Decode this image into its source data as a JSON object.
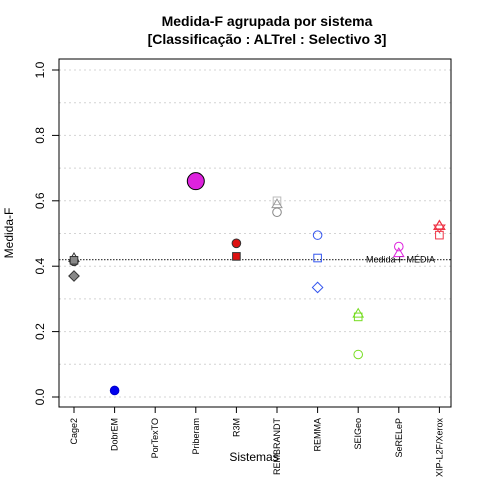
{
  "chart_data": {
    "type": "scatter",
    "title": "Medida-F agrupada por sistema",
    "subtitle": "[Classificação : ALTrel : Selectivo 3]",
    "xlabel": "Sistemas",
    "ylabel": "Medida-F",
    "ylim": [
      0,
      1
    ],
    "yticks": [
      "0.0",
      "0.2",
      "0.4",
      "0.6",
      "0.8",
      "1.0"
    ],
    "grid": true,
    "categories": [
      "Cage2",
      "DobrEM",
      "PorTexTO",
      "Priberam",
      "R3M",
      "REMBRANDT",
      "REMMA",
      "SEIGeo",
      "SeRELeP",
      "XIP-L2F/Xerox"
    ],
    "reference_line": {
      "label": "Medida-F MÉDIA",
      "value": 0.42
    },
    "points": [
      {
        "category": "Cage2",
        "value": 0.425,
        "shape": "triangle",
        "color": "#333333",
        "fill": "none"
      },
      {
        "category": "Cage2",
        "value": 0.415,
        "shape": "circle",
        "color": "#333333",
        "fill": "#888888"
      },
      {
        "category": "Cage2",
        "value": 0.418,
        "shape": "square",
        "color": "#333333",
        "fill": "#888888"
      },
      {
        "category": "Cage2",
        "value": 0.37,
        "shape": "diamond",
        "color": "#333333",
        "fill": "#888888"
      },
      {
        "category": "DobrEM",
        "value": 0.02,
        "shape": "circle",
        "color": "#0000cc",
        "fill": "#0000ee"
      },
      {
        "category": "Priberam",
        "value": 0.66,
        "shape": "circle-large",
        "color": "#000000",
        "fill": "#dd22dd"
      },
      {
        "category": "R3M",
        "value": 0.47,
        "shape": "circle",
        "color": "#333333",
        "fill": "#dd1111"
      },
      {
        "category": "R3M",
        "value": 0.43,
        "shape": "square",
        "color": "#333333",
        "fill": "#dd1111"
      },
      {
        "category": "REMBRANDT",
        "value": 0.6,
        "shape": "square",
        "color": "#bbbbbb",
        "fill": "none"
      },
      {
        "category": "REMBRANDT",
        "value": 0.59,
        "shape": "triangle",
        "color": "#999999",
        "fill": "none"
      },
      {
        "category": "REMBRANDT",
        "value": 0.565,
        "shape": "circle",
        "color": "#888888",
        "fill": "none"
      },
      {
        "category": "REMMA",
        "value": 0.495,
        "shape": "circle",
        "color": "#3355ee",
        "fill": "none"
      },
      {
        "category": "REMMA",
        "value": 0.425,
        "shape": "square",
        "color": "#3355ee",
        "fill": "none"
      },
      {
        "category": "REMMA",
        "value": 0.335,
        "shape": "diamond",
        "color": "#3355ee",
        "fill": "none"
      },
      {
        "category": "SEIGeo",
        "value": 0.255,
        "shape": "triangle",
        "color": "#77dd22",
        "fill": "none"
      },
      {
        "category": "SEIGeo",
        "value": 0.245,
        "shape": "square",
        "color": "#77dd22",
        "fill": "none"
      },
      {
        "category": "SEIGeo",
        "value": 0.13,
        "shape": "circle",
        "color": "#77dd22",
        "fill": "none"
      },
      {
        "category": "SeRELeP",
        "value": 0.46,
        "shape": "circle",
        "color": "#dd22dd",
        "fill": "none"
      },
      {
        "category": "SeRELeP",
        "value": 0.44,
        "shape": "triangle",
        "color": "#dd22dd",
        "fill": "none"
      },
      {
        "category": "XIP-L2F/Xerox",
        "value": 0.525,
        "shape": "triangle",
        "color": "#ee3344",
        "fill": "none"
      },
      {
        "category": "XIP-L2F/Xerox",
        "value": 0.52,
        "shape": "star",
        "color": "#ee3344",
        "fill": "none"
      },
      {
        "category": "XIP-L2F/Xerox",
        "value": 0.495,
        "shape": "square",
        "color": "#ee3344",
        "fill": "none"
      }
    ]
  }
}
